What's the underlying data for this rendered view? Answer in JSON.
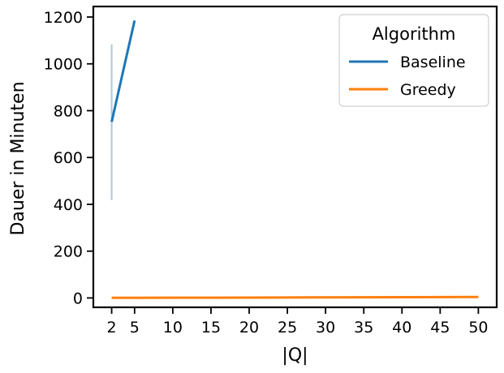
{
  "chart_data": {
    "type": "line",
    "title": "",
    "xlabel": "|Q|",
    "ylabel": "Dauer in Minuten",
    "xlim": [
      -0.4,
      52.4
    ],
    "ylim": [
      -40,
      1245
    ],
    "x_ticks": [
      2,
      5,
      10,
      15,
      20,
      25,
      30,
      35,
      40,
      45,
      50
    ],
    "y_ticks": [
      0,
      200,
      400,
      600,
      800,
      1000,
      1200
    ],
    "grid": false,
    "legend": {
      "title": "Algorithm",
      "placement": "top-right"
    },
    "series": [
      {
        "name": "Baseline",
        "color": "#1f77b4",
        "x": [
          2,
          5
        ],
        "y": [
          752,
          1185
        ],
        "error_band": {
          "x": 2,
          "low": 418,
          "high": 1083,
          "color": "#b0c8d6"
        }
      },
      {
        "name": "Greedy",
        "color": "#ff7f0e",
        "x": [
          2,
          5,
          10,
          15,
          20,
          25,
          30,
          35,
          40,
          45,
          50
        ],
        "y": [
          0.5,
          0.7,
          1.0,
          1.3,
          1.6,
          2.0,
          2.4,
          2.8,
          3.3,
          3.8,
          4.3
        ]
      }
    ]
  }
}
